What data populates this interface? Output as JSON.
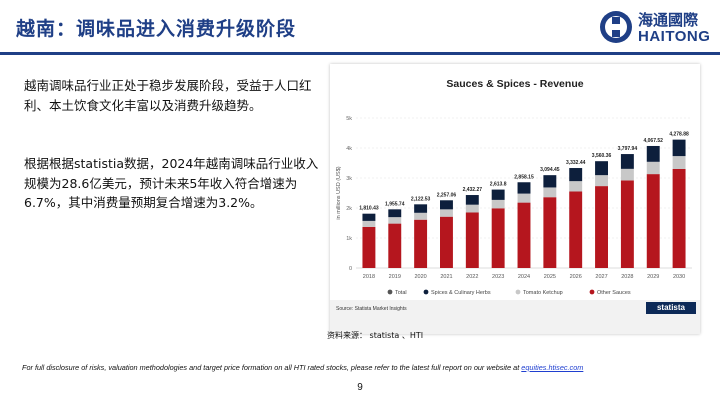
{
  "header": {
    "title": "越南：调味品进入消费升级阶段",
    "logo_cn": "海通國際",
    "logo_en": "HAITONG"
  },
  "bullets": [
    "越南调味品行业正处于稳步发展阶段，受益于人口红利、本土饮食文化丰富以及消费升级趋势。",
    "根据根据statistia数据，2024年越南调味品行业收入规模为28.6亿美元，预计未来5年收入符合增速为6.7%，其中消费量预期复合增速为3.2%。"
  ],
  "chart_data": {
    "type": "bar",
    "title": "Sauces & Spices - Revenue",
    "ylabel": "in millions USD (US$)",
    "ylim": [
      0,
      5000
    ],
    "yticks": [
      "0",
      "1k",
      "2k",
      "3k",
      "4k",
      "5k"
    ],
    "categories": [
      "2018",
      "2019",
      "2020",
      "2021",
      "2022",
      "2023",
      "2024",
      "2025",
      "2026",
      "2027",
      "2028",
      "2029",
      "2030"
    ],
    "totals": [
      1810.43,
      1955.74,
      2122.53,
      2257.06,
      2432.27,
      2613.8,
      2858.15,
      3094.45,
      3332.44,
      3560.36,
      3797.94,
      4067.52,
      4278.88
    ],
    "total_labels": [
      "1,810.43",
      "1,955.74",
      "2,122.53",
      "2,257.06",
      "2,432.27",
      "2,613.8",
      "2,858.15",
      "3,094.45",
      "3,332.44",
      "3,560.36",
      "3,797.94",
      "4,067.52",
      "4,278.88"
    ],
    "series": [
      {
        "name": "Other Sauces",
        "color": "#b5161e",
        "values": [
          1370,
          1480,
          1610,
          1710,
          1850,
          1990,
          2180,
          2360,
          2550,
          2730,
          2920,
          3130,
          3300
        ]
      },
      {
        "name": "Tomato Ketchup",
        "color": "#c8c8c8",
        "values": [
          200,
          215,
          230,
          245,
          260,
          280,
          300,
          325,
          345,
          365,
          385,
          410,
          430
        ]
      },
      {
        "name": "Spices & Culinary Herbs",
        "color": "#0d1f3c",
        "values": [
          240.43,
          260.74,
          282.53,
          302.06,
          322.27,
          343.8,
          378.15,
          409.45,
          437.44,
          465.36,
          492.94,
          527.52,
          548.88
        ]
      }
    ],
    "legend": [
      {
        "name": "Total",
        "color": "#555555"
      },
      {
        "name": "Spices & Culinary Herbs",
        "color": "#0d1f3c"
      },
      {
        "name": "Tomato Ketchup",
        "color": "#c8c8c8"
      },
      {
        "name": "Other Sauces",
        "color": "#b5161e"
      }
    ],
    "legend_position": "bottom",
    "grid": true
  },
  "chart_footer": {
    "source_note": "Source: Statista Market Insights",
    "brand": "statista"
  },
  "data_source": "资料来源： statista 、HTI",
  "disclosure": {
    "text": "For full disclosure of risks, valuation methodologies and target price formation on all HTI rated stocks, please refer to the latest full report on our website at ",
    "link": "equities.htisec.com"
  },
  "page_number": "9"
}
